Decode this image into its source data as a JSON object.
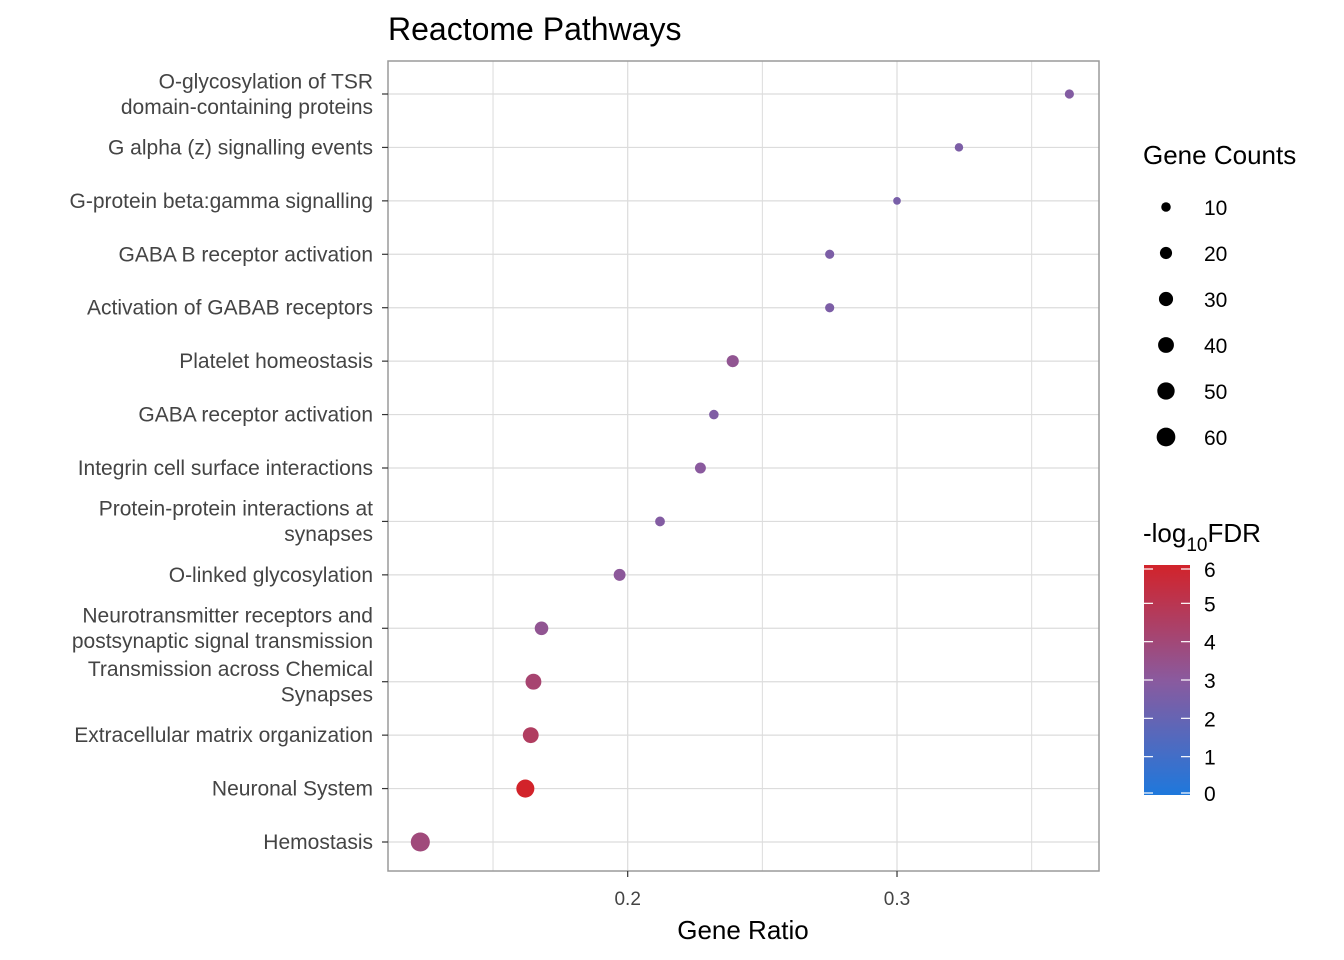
{
  "chart_data": {
    "type": "scatter",
    "title": "Reactome Pathways",
    "xlabel": "Gene Ratio",
    "ylabel": "",
    "xlim": [
      0.111,
      0.375
    ],
    "x_ticks": [
      0.2,
      0.3
    ],
    "x_tick_labels": [
      "0.2",
      "0.3"
    ],
    "grid": true,
    "points": [
      {
        "label_lines": [
          "O-glycosylation of TSR",
          "domain-containing proteins"
        ],
        "gene_ratio": 0.364,
        "count": 9,
        "neg_log10_fdr": 2.8
      },
      {
        "label_lines": [
          "G alpha (z) signalling events"
        ],
        "gene_ratio": 0.323,
        "count": 7,
        "neg_log10_fdr": 2.6
      },
      {
        "label_lines": [
          "G-protein beta:gamma signalling"
        ],
        "gene_ratio": 0.3,
        "count": 5,
        "neg_log10_fdr": 2.5
      },
      {
        "label_lines": [
          "GABA B receptor activation"
        ],
        "gene_ratio": 0.275,
        "count": 9,
        "neg_log10_fdr": 2.6
      },
      {
        "label_lines": [
          "Activation of GABAB receptors"
        ],
        "gene_ratio": 0.275,
        "count": 9,
        "neg_log10_fdr": 2.6
      },
      {
        "label_lines": [
          "Platelet homeostasis"
        ],
        "gene_ratio": 0.239,
        "count": 20,
        "neg_log10_fdr": 3.3
      },
      {
        "label_lines": [
          "GABA receptor activation"
        ],
        "gene_ratio": 0.232,
        "count": 10,
        "neg_log10_fdr": 2.7
      },
      {
        "label_lines": [
          "Integrin cell surface interactions"
        ],
        "gene_ratio": 0.227,
        "count": 15,
        "neg_log10_fdr": 3.0
      },
      {
        "label_lines": [
          "Protein-protein interactions at",
          "synapses"
        ],
        "gene_ratio": 0.212,
        "count": 11,
        "neg_log10_fdr": 2.8
      },
      {
        "label_lines": [
          "O-linked glycosylation"
        ],
        "gene_ratio": 0.197,
        "count": 19,
        "neg_log10_fdr": 3.1
      },
      {
        "label_lines": [
          "Neurotransmitter receptors and",
          "postsynaptic signal transmission"
        ],
        "gene_ratio": 0.168,
        "count": 27,
        "neg_log10_fdr": 3.3
      },
      {
        "label_lines": [
          "Transmission across Chemical",
          "Synapses"
        ],
        "gene_ratio": 0.165,
        "count": 40,
        "neg_log10_fdr": 4.2
      },
      {
        "label_lines": [
          "Extracellular matrix organization"
        ],
        "gene_ratio": 0.164,
        "count": 40,
        "neg_log10_fdr": 4.6
      },
      {
        "label_lines": [
          "Neuronal System"
        ],
        "gene_ratio": 0.162,
        "count": 55,
        "neg_log10_fdr": 6.0
      },
      {
        "label_lines": [
          "Hemostasis"
        ],
        "gene_ratio": 0.123,
        "count": 63,
        "neg_log10_fdr": 3.9
      }
    ],
    "size_legend": {
      "title": "Gene Counts",
      "entries": [
        10,
        20,
        30,
        40,
        50,
        60
      ],
      "labels": [
        "10",
        "20",
        "30",
        "40",
        "50",
        "60"
      ]
    },
    "color_legend": {
      "title_prefix": "-log",
      "title_sub": "10",
      "title_suffix": "FDR",
      "ticks": [
        6,
        5,
        4,
        3,
        2,
        1,
        0
      ],
      "tick_labels": [
        "6",
        "5",
        "4",
        "3",
        "2",
        "1",
        "0"
      ],
      "range": [
        0,
        6
      ],
      "low_color": "#1E78DC",
      "mid_color": "#8A5A9E",
      "high_color": "#D2232A"
    },
    "legend_position": "right"
  },
  "colors": {
    "grid": "#DCDCDC",
    "panel_border": "#9A9A9A",
    "tick": "#333333"
  }
}
